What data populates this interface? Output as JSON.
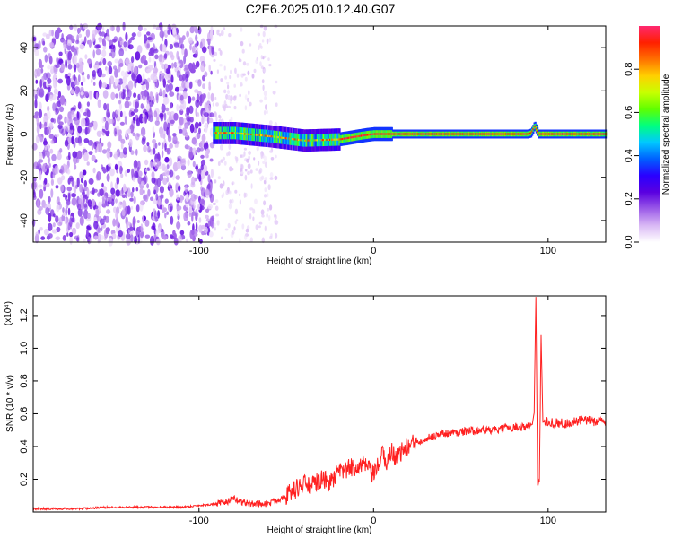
{
  "title": "C2E6.2025.010.12.40.G07",
  "chart_data": [
    {
      "type": "heatmap",
      "xlabel": "Height of straight line (km)",
      "ylabel": "Frequency (Hz)",
      "xlim": [
        -195,
        133
      ],
      "ylim": [
        -50,
        50
      ],
      "xticks": [
        -100,
        0,
        100
      ],
      "yticks": [
        -40,
        -20,
        0,
        20,
        40
      ],
      "colorbar": {
        "label": "Normalized spectral amplitude",
        "range": [
          0,
          1
        ],
        "ticks": [
          "0.0",
          "0.2",
          "0.4",
          "0.6",
          "0.8"
        ],
        "colormap": [
          "#ffffff",
          "#d9b8f5",
          "#9b5be8",
          "#5a00e0",
          "#2a00ff",
          "#0060ff",
          "#00c8ff",
          "#00ff80",
          "#60ff00",
          "#c8ff00",
          "#ffd000",
          "#ff7000",
          "#ff2000",
          "#ff2870"
        ]
      },
      "ridge_center_hz": [
        {
          "x": -92,
          "y": 0.5
        },
        {
          "x": -80,
          "y": 0.5
        },
        {
          "x": -60,
          "y": -1.0
        },
        {
          "x": -40,
          "y": -3.0
        },
        {
          "x": -20,
          "y": -2.5
        },
        {
          "x": -5,
          "y": -0.5
        },
        {
          "x": 0,
          "y": 0
        },
        {
          "x": 20,
          "y": 0
        },
        {
          "x": 88,
          "y": 0
        },
        {
          "x": 90,
          "y": 0.5
        },
        {
          "x": 92,
          "y": 4
        },
        {
          "x": 94,
          "y": 0
        },
        {
          "x": 133,
          "y": 0
        }
      ],
      "noise_regions_km": [
        [
          -195,
          -92
        ],
        [
          -92,
          -55
        ]
      ]
    },
    {
      "type": "line",
      "xlabel": "Height of straight line (km)",
      "ylabel": "SNR (10 * v/v)",
      "y_multiplier": "(x10⁴)",
      "xlim": [
        -195,
        133
      ],
      "ylim": [
        0,
        1.32
      ],
      "xticks": [
        -100,
        0,
        100
      ],
      "yticks": [
        0.2,
        0.4,
        0.6,
        0.8,
        1.0,
        1.2
      ],
      "line_color": "#ff2020",
      "series": [
        {
          "x": [
            -195,
            -170,
            -150,
            -130,
            -110,
            -100,
            -90,
            -85,
            -80,
            -75,
            -70,
            -60,
            -50,
            -45,
            -40,
            -35,
            -30,
            -25,
            -20,
            -15,
            -10,
            -5,
            0,
            5,
            8,
            10,
            12,
            15,
            20,
            25,
            30,
            40,
            50,
            60,
            70,
            80,
            88,
            91,
            92,
            93,
            94,
            95,
            96,
            97,
            100,
            110,
            120,
            133
          ],
          "y": [
            0.02,
            0.02,
            0.03,
            0.03,
            0.03,
            0.04,
            0.05,
            0.06,
            0.08,
            0.06,
            0.05,
            0.05,
            0.1,
            0.14,
            0.17,
            0.16,
            0.2,
            0.18,
            0.24,
            0.26,
            0.28,
            0.29,
            0.22,
            0.35,
            0.3,
            0.38,
            0.34,
            0.36,
            0.4,
            0.43,
            0.45,
            0.48,
            0.49,
            0.5,
            0.5,
            0.52,
            0.52,
            0.54,
            0.6,
            1.32,
            0.16,
            0.2,
            1.08,
            0.55,
            0.55,
            0.54,
            0.56,
            0.55
          ]
        }
      ]
    }
  ]
}
